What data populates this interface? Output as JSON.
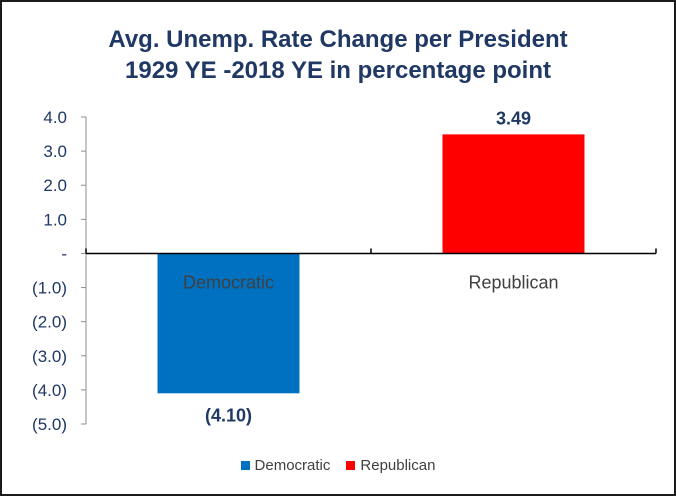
{
  "chart_data": {
    "type": "bar",
    "title_line1": "Avg. Unemp. Rate Change per President",
    "title_line2": "1929 YE -2018 YE in percentage point",
    "categories": [
      "Democratic",
      "Republican"
    ],
    "values": [
      -4.1,
      3.49
    ],
    "data_labels": [
      "(4.10)",
      "3.49"
    ],
    "colors": [
      "#0070c0",
      "#ff0000"
    ],
    "ylim": [
      -5.0,
      4.0
    ],
    "y_ticks": [
      4.0,
      3.0,
      2.0,
      1.0,
      0,
      -1.0,
      -2.0,
      -3.0,
      -4.0,
      -5.0
    ],
    "y_tick_labels": [
      "4.0",
      "3.0",
      "2.0",
      "1.0",
      "-",
      "(1.0)",
      "(2.0)",
      "(3.0)",
      "(4.0)",
      "(5.0)"
    ],
    "xlabel": "",
    "ylabel": "",
    "grid": false,
    "legend": {
      "position": "bottom",
      "entries": [
        "Democratic",
        "Republican"
      ]
    }
  }
}
